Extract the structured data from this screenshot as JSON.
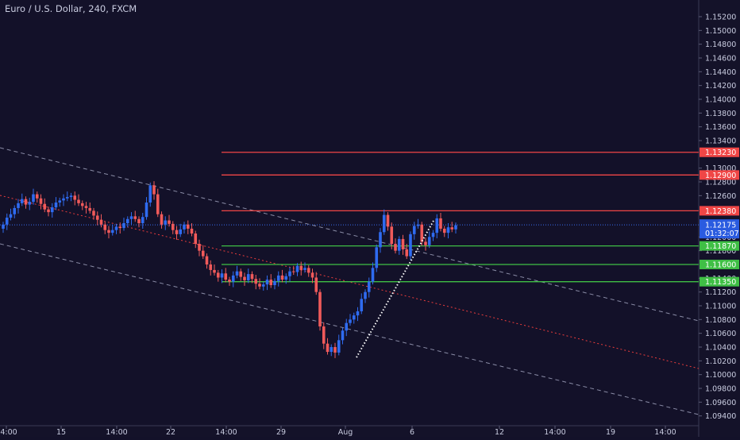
{
  "chart_data": {
    "type": "candlestick",
    "title": "Euro / U.S. Dollar, 240, FXCM",
    "timeframe": "240",
    "colors": {
      "background": "#131129",
      "up": "#2f6bf0",
      "down": "#f05a5a",
      "resistance": "#f04646",
      "support": "#3fbf45",
      "channel": "#8a8ca6",
      "midline": "#e83c3c",
      "trendline": "#ffffff",
      "price_line": "#3a6df0",
      "axis_text": "#c9cce0"
    },
    "y_axis": {
      "range": [
        1.0935,
        1.1535
      ],
      "ticks": [
        "1.15200",
        "1.15000",
        "1.14800",
        "1.14600",
        "1.14400",
        "1.14200",
        "1.14000",
        "1.13800",
        "1.13600",
        "1.13400",
        "1.13000",
        "1.12800",
        "1.12600",
        "1.12000",
        "1.11800",
        "1.11400",
        "1.11200",
        "1.11000",
        "1.10800",
        "1.10600",
        "1.10400",
        "1.10200",
        "1.10000",
        "1.09800",
        "1.09600",
        "1.09400"
      ]
    },
    "x_axis": {
      "ticks": [
        "14:00",
        "15",
        "14:00",
        "22",
        "14:00",
        "29",
        "Aug",
        "6",
        "12",
        "14:00",
        "19",
        "14:00"
      ]
    },
    "levels": [
      {
        "label": "1.13230",
        "value": 1.1323,
        "kind": "resistance"
      },
      {
        "label": "1.12900",
        "value": 1.129,
        "kind": "resistance"
      },
      {
        "label": "1.12380",
        "value": 1.1238,
        "kind": "resistance"
      },
      {
        "label": "1.11870",
        "value": 1.1187,
        "kind": "support"
      },
      {
        "label": "1.11600",
        "value": 1.116,
        "kind": "support"
      },
      {
        "label": "1.11350",
        "value": 1.1135,
        "kind": "support"
      }
    ],
    "current_price": {
      "label": "1.12175",
      "countdown": "01:32:07",
      "value": 1.12175
    },
    "closes": [
      1.1218,
      1.1228,
      1.1233,
      1.1242,
      1.1249,
      1.1255,
      1.1247,
      1.1251,
      1.1262,
      1.1256,
      1.1248,
      1.124,
      1.1236,
      1.1243,
      1.125,
      1.1253,
      1.1256,
      1.1258,
      1.126,
      1.1254,
      1.1249,
      1.1245,
      1.1242,
      1.1238,
      1.1231,
      1.1225,
      1.1218,
      1.121,
      1.1206,
      1.121,
      1.1215,
      1.1213,
      1.122,
      1.1226,
      1.123,
      1.1226,
      1.122,
      1.1229,
      1.125,
      1.1275,
      1.1262,
      1.1233,
      1.1218,
      1.1224,
      1.1219,
      1.121,
      1.1204,
      1.1211,
      1.1218,
      1.1212,
      1.1205,
      1.119,
      1.118,
      1.1172,
      1.116,
      1.1152,
      1.1148,
      1.1141,
      1.1147,
      1.1138,
      1.1135,
      1.1144,
      1.115,
      1.1142,
      1.1137,
      1.1146,
      1.1139,
      1.1132,
      1.1128,
      1.1131,
      1.1138,
      1.113,
      1.1136,
      1.1144,
      1.1138,
      1.1143,
      1.115,
      1.1149,
      1.1158,
      1.1152,
      1.1155,
      1.1148,
      1.1141,
      1.112,
      1.107,
      1.1045,
      1.1033,
      1.104,
      1.1032,
      1.105,
      1.1064,
      1.1075,
      1.108,
      1.1086,
      1.1092,
      1.111,
      1.112,
      1.1135,
      1.1155,
      1.1185,
      1.1207,
      1.1232,
      1.1215,
      1.119,
      1.118,
      1.1197,
      1.1182,
      1.1172,
      1.1204,
      1.1216,
      1.1218,
      1.1193,
      1.1188,
      1.12,
      1.1206,
      1.1227,
      1.1212,
      1.1206,
      1.1214,
      1.1211,
      1.1217
    ]
  }
}
